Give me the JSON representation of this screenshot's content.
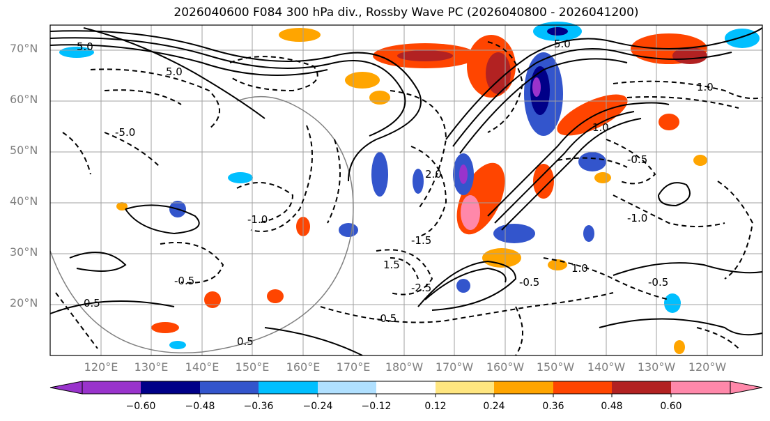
{
  "title": "2026040600 F084 300 hPa div., Rossby Wave PC (2026040800 - 2026041200)",
  "lat_labels": [
    "70°N",
    "60°N",
    "50°N",
    "40°N",
    "30°N",
    "20°N"
  ],
  "lon_labels": [
    "120°E",
    "130°E",
    "140°E",
    "150°E",
    "160°E",
    "170°E",
    "180°W",
    "170°W",
    "160°W",
    "150°W",
    "140°W",
    "130°W",
    "120°W"
  ],
  "contour_labels": [
    "-5.0",
    "-1.5",
    "-1.0",
    "-0.5",
    "0.5",
    "1.0",
    "1.5",
    "2.0",
    "-2.5",
    "5.0"
  ],
  "colorbar": {
    "ticks": [
      "−0.60",
      "−0.48",
      "−0.36",
      "−0.24",
      "−0.12",
      "0.12",
      "0.24",
      "0.36",
      "0.48",
      "0.60"
    ],
    "colors": [
      "#9933cc",
      "#000088",
      "#3355cc",
      "#00bfff",
      "#b0e0ff",
      "#ffffff",
      "#ffe680",
      "#ffa500",
      "#ff4500",
      "#b22222",
      "#ff88aa"
    ]
  }
}
